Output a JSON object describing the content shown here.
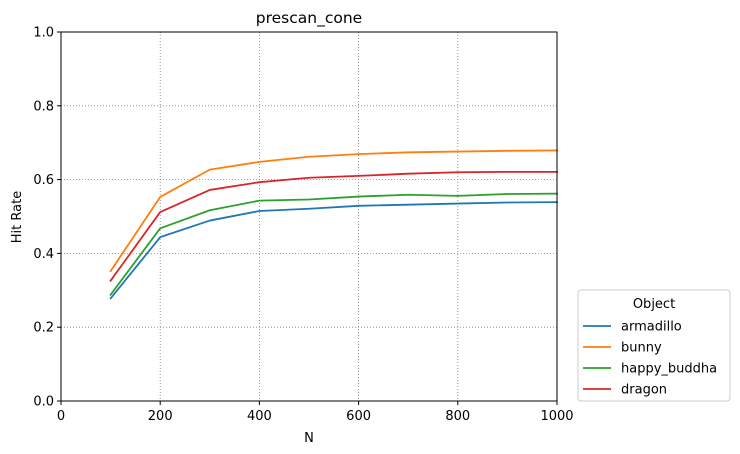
{
  "chart_data": {
    "type": "line",
    "title": "prescan_cone",
    "xlabel": "N",
    "ylabel": "Hit Rate",
    "xlim": [
      0,
      1000
    ],
    "ylim": [
      0.0,
      1.0
    ],
    "xticks": [
      "0",
      "200",
      "400",
      "600",
      "800",
      "1000"
    ],
    "yticks": [
      "0.0",
      "0.2",
      "0.4",
      "0.6",
      "0.8",
      "1.0"
    ],
    "grid": true,
    "legend_title": "Object",
    "legend_position": "outside-right-bottom",
    "x": [
      100,
      200,
      300,
      400,
      500,
      600,
      700,
      800,
      900,
      1000
    ],
    "series": [
      {
        "name": "armadillo",
        "color": "#1f77b4",
        "values": [
          0.278,
          0.444,
          0.489,
          0.515,
          0.521,
          0.529,
          0.532,
          0.535,
          0.538,
          0.539
        ]
      },
      {
        "name": "bunny",
        "color": "#ff7f0e",
        "values": [
          0.352,
          0.553,
          0.627,
          0.648,
          0.662,
          0.669,
          0.674,
          0.676,
          0.678,
          0.679
        ]
      },
      {
        "name": "happy_buddha",
        "color": "#2ca02c",
        "values": [
          0.288,
          0.468,
          0.517,
          0.543,
          0.546,
          0.554,
          0.559,
          0.556,
          0.561,
          0.562
        ]
      },
      {
        "name": "dragon",
        "color": "#d62728",
        "values": [
          0.326,
          0.512,
          0.572,
          0.593,
          0.605,
          0.61,
          0.616,
          0.62,
          0.621,
          0.621
        ]
      }
    ]
  }
}
